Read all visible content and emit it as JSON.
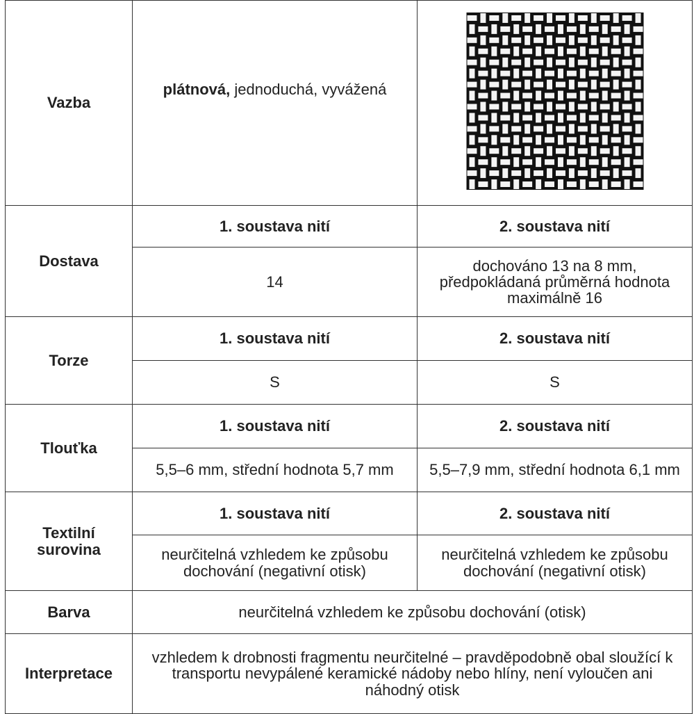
{
  "table": {
    "rows": [
      {
        "label": "Vazba",
        "value_bold": "plátnová,",
        "value": "jednoduchá, vyvážená"
      },
      {
        "label": "Dostava",
        "headers": [
          "1. soustava nití",
          "2. soustava nití"
        ],
        "values": [
          "14",
          "dochováno 13 na 8 mm, předpokládaná průměrná hodnota maximálně 16"
        ]
      },
      {
        "label": "Torze",
        "headers": [
          "1. soustava nití",
          "2. soustava nití"
        ],
        "values": [
          "S",
          "S"
        ]
      },
      {
        "label": "Tlouťka",
        "headers": [
          "1. soustava nití",
          "2. soustava nití"
        ],
        "values": [
          "5,5–6 mm, střední hodnota 5,7 mm",
          "5,5–7,9 mm, střední hodnota 6,1 mm"
        ]
      },
      {
        "label": "Textilní surovina",
        "headers": [
          "1. soustava nití",
          "2. soustava nití"
        ],
        "values": [
          "neurčitelná vzhledem ke způsobu dochování (negativní otisk)",
          "neurčitelná vzhledem ke způsobu dochování (negativní otisk)"
        ]
      },
      {
        "label": "Barva",
        "value": "neurčitelná vzhledem ke způsobu dochování (otisk)"
      },
      {
        "label": "Interpretace",
        "value": "vzhledem k drobnosti fragmentu neurčitelné – pravděpodobně obal sloužící k transportu nevypálené keramické nádoby nebo hlíny, není vyloučen ani náhodný otisk"
      }
    ]
  }
}
